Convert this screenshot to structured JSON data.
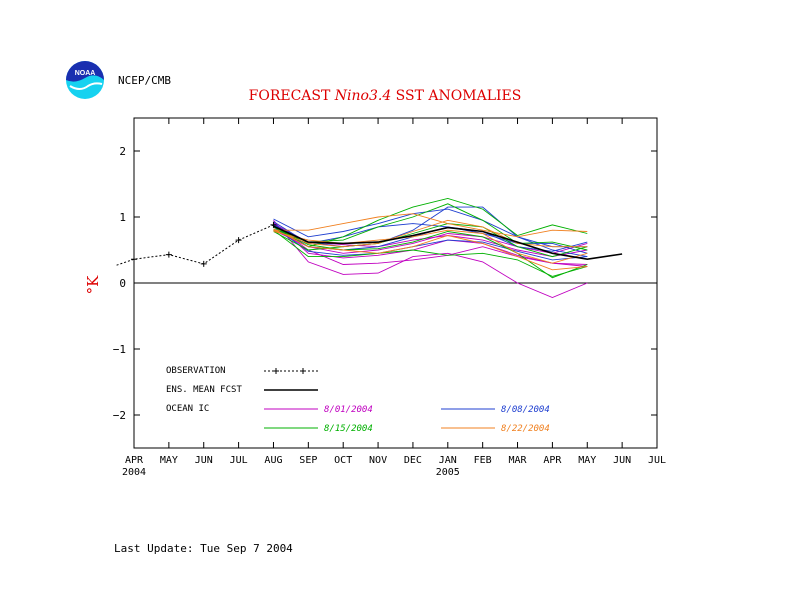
{
  "header": {
    "logo_text": "NOAA",
    "org_label": "NCEP/CMB"
  },
  "footer": {
    "last_update": "Last Update: Tue Sep 7 2004"
  },
  "colors": {
    "observation": "#000000",
    "ensemble_mean": "#000000",
    "ic_0801": "#c000c0",
    "ic_0808": "#1f3fd0",
    "ic_0815": "#00b000",
    "ic_0822": "#f08020",
    "title": "#dd0000",
    "logo_blue": "#1a2fb0",
    "logo_cyan": "#16d2f0"
  },
  "chart_data": {
    "type": "line",
    "title_prefix": "FORECAST ",
    "title_italic": "Nino3.4",
    "title_suffix": " SST ANOMALIES",
    "ylabel": "°K",
    "ylim": [
      -2.5,
      2.5
    ],
    "yticks": [
      -2,
      -1,
      0,
      1,
      2
    ],
    "ytick_labels": [
      "−2",
      "−1",
      "0",
      "1",
      "2"
    ],
    "x_categories": [
      "APR",
      "MAY",
      "JUN",
      "JUL",
      "AUG",
      "SEP",
      "OCT",
      "NOV",
      "DEC",
      "JAN",
      "FEB",
      "MAR",
      "APR",
      "MAY",
      "JUN",
      "JUL"
    ],
    "x_year_labels": [
      {
        "index": 0,
        "label": "2004"
      },
      {
        "index": 9,
        "label": "2005"
      }
    ],
    "zero_line": true,
    "legend": {
      "observation": "OBSERVATION",
      "ensemble_mean": "ENS. MEAN FCST",
      "ocean_ic": "OCEAN IC",
      "ic_labels": {
        "ic_0801": "8/01/2004",
        "ic_0808": "8/08/2004",
        "ic_0815": "8/15/2004",
        "ic_0822": "8/22/2004"
      }
    },
    "observation": {
      "x_start": -0.5,
      "y_start": 0.27,
      "values": [
        0.36,
        0.43,
        0.29,
        0.65,
        0.88
      ]
    },
    "ensemble_mean": {
      "x_start": 4,
      "values": [
        0.86,
        0.62,
        0.6,
        0.62,
        0.72,
        0.84,
        0.78,
        0.62,
        0.45,
        0.36,
        0.44
      ]
    },
    "members": [
      {
        "ic": "ic_0801",
        "x_start": 4,
        "values": [
          0.95,
          0.32,
          0.13,
          0.15,
          0.4,
          0.45,
          0.32,
          0.0,
          -0.22,
          0.0
        ]
      },
      {
        "ic": "ic_0801",
        "x_start": 4,
        "values": [
          0.88,
          0.5,
          0.28,
          0.3,
          0.35,
          0.42,
          0.55,
          0.4,
          0.3,
          0.28
        ]
      },
      {
        "ic": "ic_0801",
        "x_start": 4,
        "values": [
          0.8,
          0.55,
          0.45,
          0.5,
          0.6,
          0.75,
          0.7,
          0.55,
          0.45,
          0.6
        ]
      },
      {
        "ic": "ic_0801",
        "x_start": 4,
        "values": [
          0.9,
          0.62,
          0.58,
          0.55,
          0.65,
          0.72,
          0.65,
          0.5,
          0.4,
          0.5
        ]
      },
      {
        "ic": "ic_0801",
        "x_start": 4,
        "values": [
          0.92,
          0.45,
          0.38,
          0.42,
          0.5,
          0.65,
          0.6,
          0.42,
          0.3,
          0.25
        ]
      },
      {
        "ic": "ic_0808",
        "x_start": 4,
        "values": [
          0.97,
          0.7,
          0.78,
          0.9,
          1.05,
          1.12,
          0.95,
          0.7,
          0.55,
          0.55
        ]
      },
      {
        "ic": "ic_0808",
        "x_start": 4,
        "values": [
          0.9,
          0.55,
          0.5,
          0.55,
          0.7,
          0.85,
          0.75,
          0.6,
          0.6,
          0.45
        ]
      },
      {
        "ic": "ic_0808",
        "x_start": 4,
        "values": [
          0.88,
          0.62,
          0.55,
          0.6,
          0.8,
          1.15,
          1.15,
          0.7,
          0.5,
          0.4
        ]
      },
      {
        "ic": "ic_0808",
        "x_start": 4,
        "values": [
          0.93,
          0.6,
          0.7,
          0.85,
          0.9,
          0.85,
          0.78,
          0.55,
          0.48,
          0.62
        ]
      },
      {
        "ic": "ic_0808",
        "x_start": 4,
        "values": [
          0.85,
          0.48,
          0.42,
          0.45,
          0.55,
          0.65,
          0.62,
          0.48,
          0.35,
          0.4
        ]
      },
      {
        "ic": "ic_0815",
        "x_start": 4,
        "values": [
          0.85,
          0.55,
          0.7,
          0.95,
          1.15,
          1.28,
          1.12,
          0.72,
          0.88,
          0.75
        ]
      },
      {
        "ic": "ic_0815",
        "x_start": 4,
        "values": [
          0.8,
          0.4,
          0.4,
          0.45,
          0.5,
          0.42,
          0.45,
          0.35,
          0.1,
          0.25
        ]
      },
      {
        "ic": "ic_0815",
        "x_start": 4,
        "values": [
          0.82,
          0.62,
          0.65,
          0.85,
          1.0,
          1.2,
          0.95,
          0.6,
          0.62,
          0.5
        ]
      },
      {
        "ic": "ic_0815",
        "x_start": 4,
        "values": [
          0.78,
          0.5,
          0.55,
          0.6,
          0.75,
          0.9,
          0.85,
          0.55,
          0.4,
          0.55
        ]
      },
      {
        "ic": "ic_0815",
        "x_start": 4,
        "values": [
          0.86,
          0.58,
          0.5,
          0.52,
          0.62,
          0.78,
          0.7,
          0.45,
          0.08,
          0.28
        ]
      },
      {
        "ic": "ic_0822",
        "x_start": 4,
        "values": [
          0.8,
          0.8,
          0.9,
          1.0,
          1.05,
          0.9,
          0.8,
          0.7,
          0.8,
          0.78
        ]
      },
      {
        "ic": "ic_0822",
        "x_start": 4,
        "values": [
          0.8,
          0.6,
          0.55,
          0.6,
          0.78,
          0.95,
          0.85,
          0.6,
          0.55,
          0.55
        ]
      },
      {
        "ic": "ic_0822",
        "x_start": 4,
        "values": [
          0.82,
          0.55,
          0.5,
          0.45,
          0.55,
          0.72,
          0.6,
          0.4,
          0.2,
          0.25
        ]
      },
      {
        "ic": "ic_0822",
        "x_start": 4,
        "values": [
          0.78,
          0.65,
          0.6,
          0.65,
          0.7,
          0.8,
          0.75,
          0.45,
          0.3,
          0.45
        ]
      }
    ]
  }
}
